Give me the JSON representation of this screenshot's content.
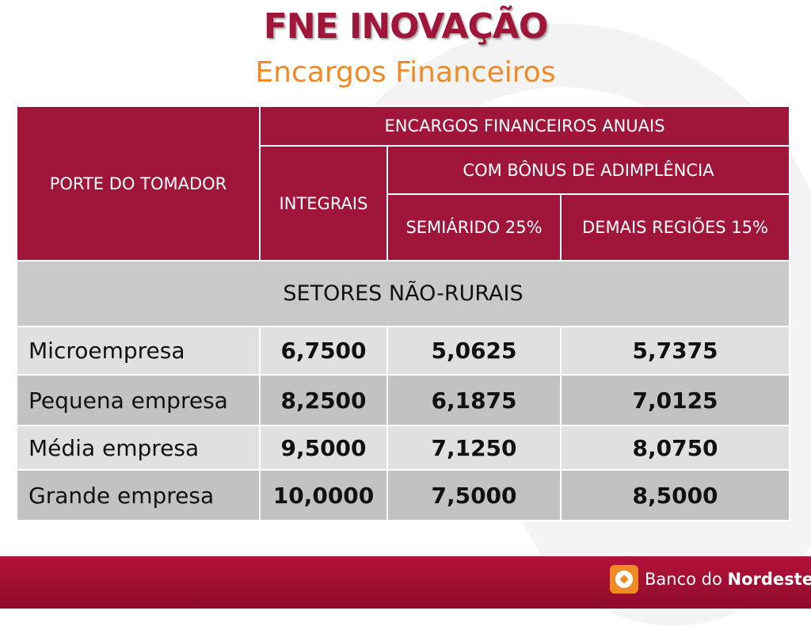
{
  "slide": {
    "title": "FNE INOVAÇÃO",
    "subtitle": "Encargos Financeiros"
  },
  "table": {
    "header": {
      "porte": "PORTE DO TOMADOR",
      "encargos": "ENCARGOS FINANCEIROS ANUAIS",
      "integrais": "INTEGRAIS",
      "bonus": "COM BÔNUS DE ADIMPLÊNCIA",
      "semiarido": "SEMIÁRIDO 25%",
      "demais": "DEMAIS REGIÕES 15%"
    },
    "section": "SETORES NÃO-RURAIS",
    "rows": [
      {
        "porte": "Microempresa",
        "integrais": "6,7500",
        "semiarido": "5,0625",
        "demais": "5,7375"
      },
      {
        "porte": "Pequena empresa",
        "integrais": "8,2500",
        "semiarido": "6,1875",
        "demais": "7,0125"
      },
      {
        "porte": "Média empresa",
        "integrais": "9,5000",
        "semiarido": "7,1250",
        "demais": "8,0750"
      },
      {
        "porte": "Grande empresa",
        "integrais": "10,0000",
        "semiarido": "7,5000",
        "demais": "8,5000"
      }
    ]
  },
  "footer": {
    "logo_icon": "banco-do-nordeste-logo-icon",
    "logo_text_regular": "Banco do ",
    "logo_text_bold": "Nordeste"
  },
  "colors": {
    "primary": "#a0163a",
    "accent": "#f08a24",
    "row_light": "#e0e0e0",
    "row_dark": "#c2c2c2"
  }
}
